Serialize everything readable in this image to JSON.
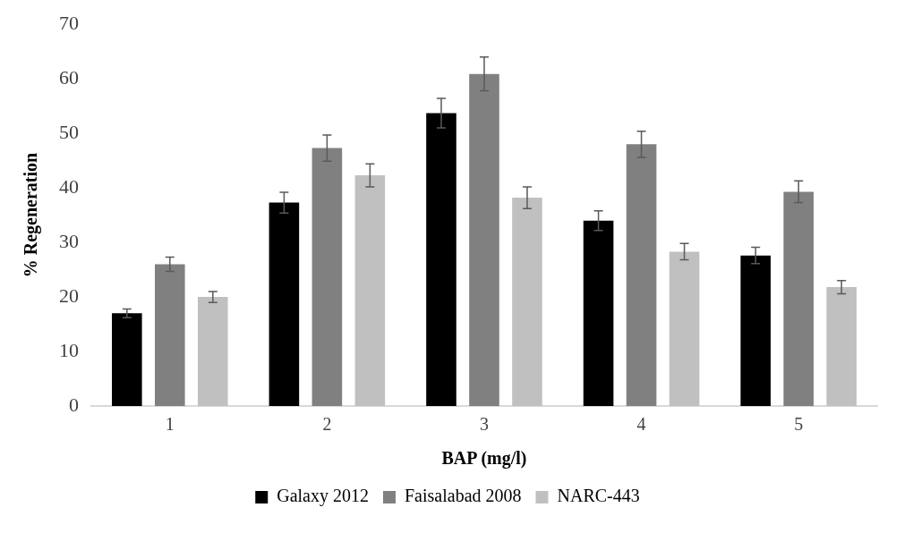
{
  "chart_data": {
    "type": "bar",
    "xlabel": "BAP (mg/l)",
    "ylabel": "% Regeneration",
    "categories": [
      "1",
      "2",
      "3",
      "4",
      "5"
    ],
    "series": [
      {
        "name": "Galaxy 2012",
        "color": "#000000",
        "values": [
          17,
          37.3,
          53.7,
          34,
          27.6
        ],
        "errors": [
          0.8,
          1.9,
          2.7,
          1.8,
          1.5
        ]
      },
      {
        "name": "Faisalabad 2008",
        "color": "#808080",
        "values": [
          26,
          47.3,
          60.9,
          48,
          39.3
        ],
        "errors": [
          1.3,
          2.4,
          3.1,
          2.4,
          2
        ]
      },
      {
        "name": "NARC-443",
        "color": "#c0c0c0",
        "values": [
          20,
          42.3,
          38.2,
          28.3,
          21.8
        ],
        "errors": [
          1,
          2.1,
          2,
          1.5,
          1.2
        ]
      }
    ],
    "ylim": [
      0,
      70
    ],
    "yticks": [
      0,
      10,
      20,
      30,
      40,
      50,
      60,
      70
    ],
    "grid": false,
    "legend": "bottom"
  }
}
